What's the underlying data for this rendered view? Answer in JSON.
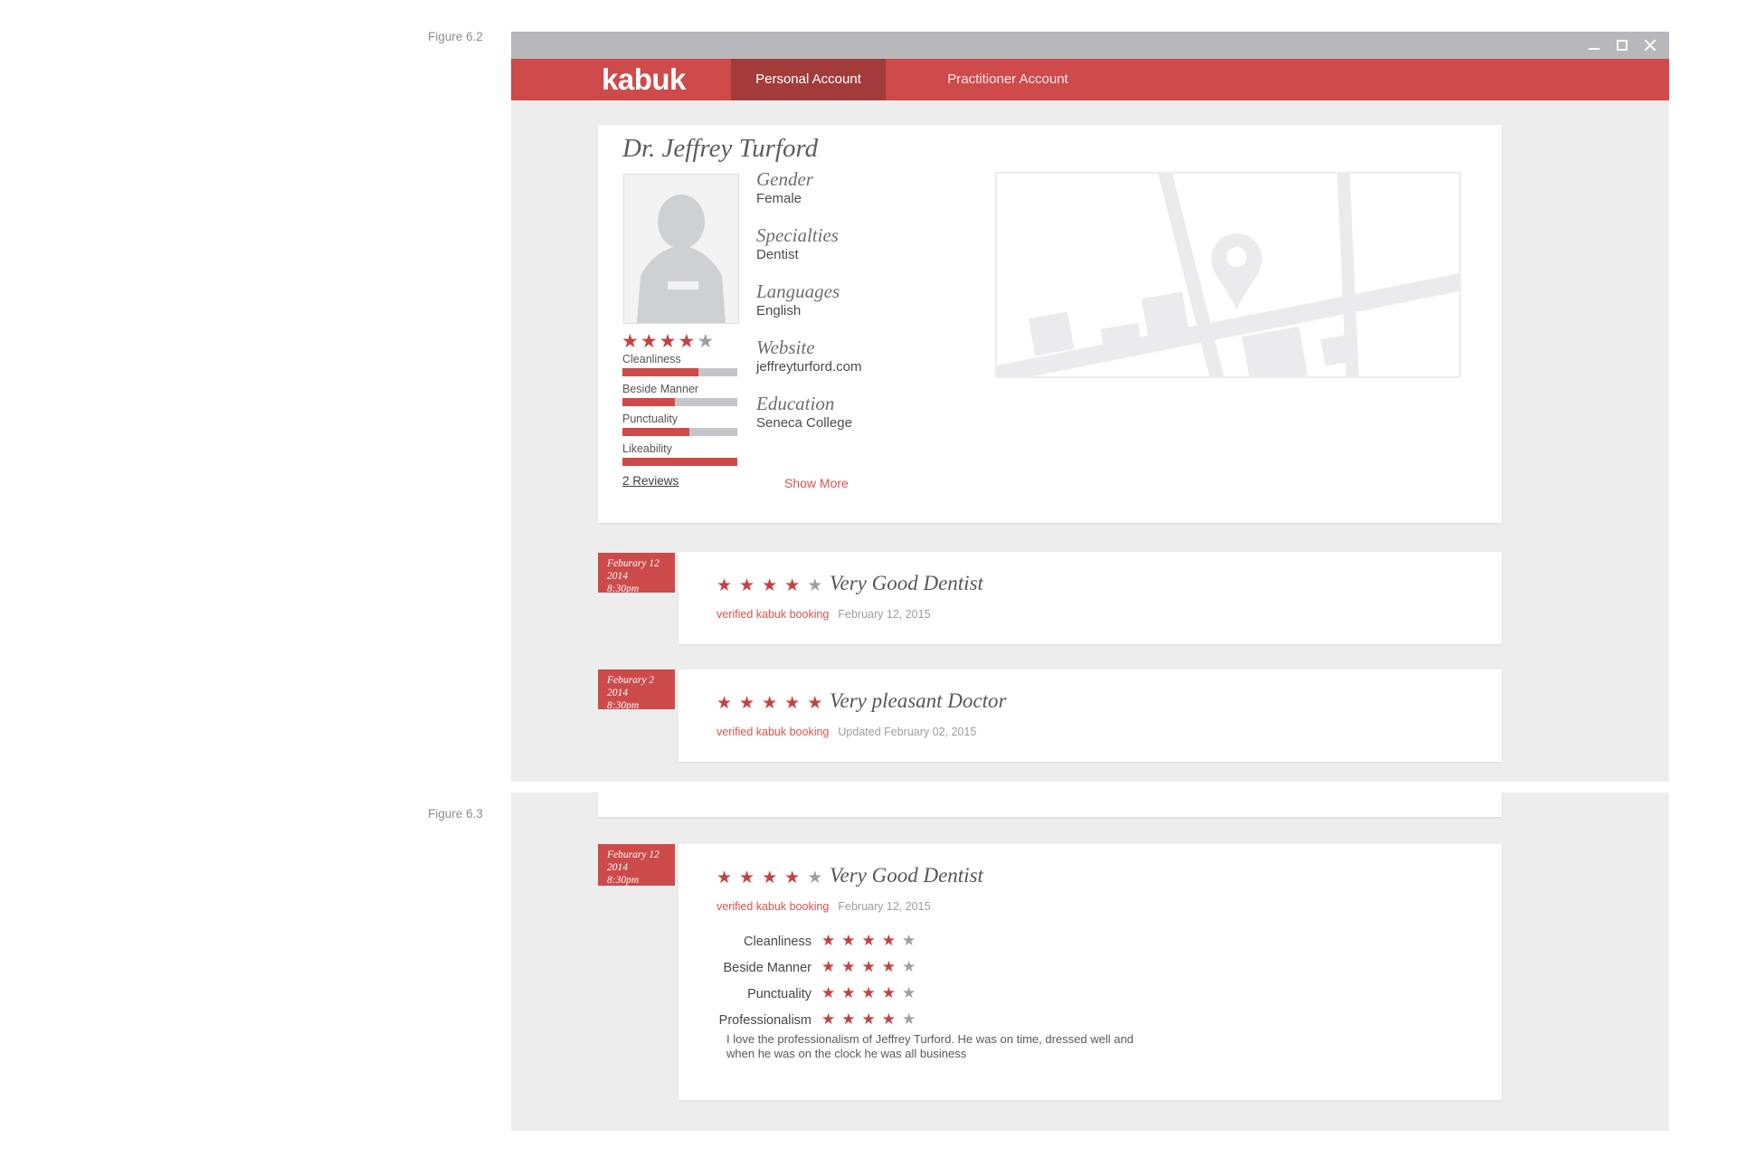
{
  "figures": {
    "fig62": "Figure 6.2",
    "fig63": "Figure 6.3"
  },
  "window": {
    "controls": {
      "minimize": "minimize",
      "maximize": "maximize",
      "close": "close"
    }
  },
  "nav": {
    "logo": "kabuk",
    "tabs": [
      {
        "label": "Personal Account",
        "active": true
      },
      {
        "label": "Practitioner Account",
        "active": false
      }
    ]
  },
  "profile": {
    "name": "Dr. Jeffrey Turford",
    "overall": {
      "filled": 4,
      "total": 5
    },
    "rating_bars": [
      {
        "label": "Cleanliness",
        "percent": 66
      },
      {
        "label": "Beside Manner",
        "percent": 46
      },
      {
        "label": "Punctuality",
        "percent": 58
      },
      {
        "label": "Likeability",
        "percent": 100
      }
    ],
    "reviews_link": "2 Reviews",
    "details": [
      {
        "label": "Gender",
        "value": "Female"
      },
      {
        "label": "Specialties",
        "value": "Dentist"
      },
      {
        "label": "Languages",
        "value": "English"
      },
      {
        "label": "Website",
        "value": "jeffreyturford.com"
      },
      {
        "label": "Education",
        "value": "Seneca College"
      }
    ],
    "show_more": "Show More"
  },
  "reviews": [
    {
      "badge": [
        "Feburary 12",
        "2014",
        "8:30pm"
      ],
      "stars": {
        "filled": 4,
        "total": 5
      },
      "title": "Very Good Dentist",
      "verified": "verified kabuk booking",
      "date": "February 12, 2015"
    },
    {
      "badge": [
        "Feburary 2",
        "2014",
        "8:30pm"
      ],
      "stars": {
        "filled": 5,
        "total": 5
      },
      "title": "Very pleasant Doctor",
      "verified": "verified kabuk booking",
      "date": "Updated February 02, 2015"
    }
  ],
  "expanded_review": {
    "badge": [
      "Feburary 12",
      "2014",
      "8:30pm"
    ],
    "stars": {
      "filled": 4,
      "total": 5
    },
    "title": "Very Good Dentist",
    "verified": "verified kabuk booking",
    "date": "February 12, 2015",
    "subratings": [
      {
        "label": "Cleanliness",
        "stars": {
          "filled": 4,
          "total": 5
        }
      },
      {
        "label": "Beside Manner",
        "stars": {
          "filled": 4,
          "total": 5
        }
      },
      {
        "label": "Punctuality",
        "stars": {
          "filled": 4,
          "total": 5
        }
      },
      {
        "label": "Professionalism",
        "stars": {
          "filled": 4,
          "total": 5
        }
      }
    ],
    "body": "I love the professionalism of Jeffrey Turford. He was on time, dressed well and when he was on the clock he was all business"
  },
  "colors": {
    "nav_red": "#cf4a4a",
    "tab_active_red": "#a33b3b",
    "badge_red": "#cc4b4a",
    "star_red": "#c5413f",
    "star_gray": "#9da1a7",
    "bar_fill_red": "#ce4a49",
    "bar_track_gray": "#c5c5c9",
    "link_red": "#d8534e",
    "canvas_gray": "#ededee",
    "titlebar_gray": "#b8b8bc"
  }
}
